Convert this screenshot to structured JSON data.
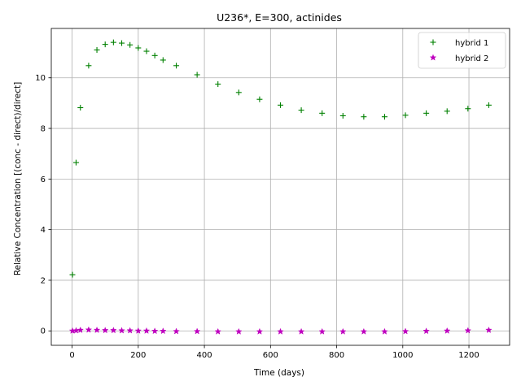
{
  "chart_data": {
    "type": "scatter",
    "title": "U236*, E=300, actinides",
    "xlabel": "Time (days)",
    "ylabel": "Relative Concentration [(conc - direct)/direct]",
    "xlim": [
      -63,
      1323
    ],
    "ylim": [
      -0.57,
      11.95
    ],
    "xticks": [
      0,
      200,
      400,
      600,
      800,
      1000,
      1200
    ],
    "yticks": [
      0,
      2,
      4,
      6,
      8,
      10
    ],
    "grid": true,
    "legend_position": "top-right",
    "series": [
      {
        "name": "hybrid 1",
        "marker": "plus",
        "color": "#008000",
        "x": [
          1,
          12,
          25,
          50,
          75,
          100,
          125,
          150,
          175,
          200,
          225,
          250,
          275,
          315,
          378,
          441,
          504,
          567,
          630,
          693,
          756,
          819,
          882,
          945,
          1008,
          1071,
          1134,
          1197,
          1260
        ],
        "y": [
          2.22,
          6.65,
          8.82,
          10.48,
          11.1,
          11.32,
          11.4,
          11.37,
          11.3,
          11.18,
          11.05,
          10.88,
          10.7,
          10.48,
          10.12,
          9.75,
          9.42,
          9.15,
          8.92,
          8.72,
          8.6,
          8.5,
          8.46,
          8.46,
          8.52,
          8.6,
          8.68,
          8.78,
          8.92
        ]
      },
      {
        "name": "hybrid 2",
        "marker": "star",
        "color": "#bf00bf",
        "x": [
          1,
          12,
          25,
          50,
          75,
          100,
          125,
          150,
          175,
          200,
          225,
          250,
          275,
          315,
          378,
          441,
          504,
          567,
          630,
          693,
          756,
          819,
          882,
          945,
          1008,
          1071,
          1134,
          1197,
          1260
        ],
        "y": [
          0.0,
          0.01,
          0.03,
          0.04,
          0.03,
          0.02,
          0.02,
          0.01,
          0.01,
          0.0,
          0.0,
          -0.01,
          -0.01,
          -0.02,
          -0.02,
          -0.03,
          -0.03,
          -0.03,
          -0.03,
          -0.03,
          -0.03,
          -0.03,
          -0.03,
          -0.03,
          -0.02,
          -0.01,
          0.0,
          0.01,
          0.03
        ]
      }
    ]
  }
}
